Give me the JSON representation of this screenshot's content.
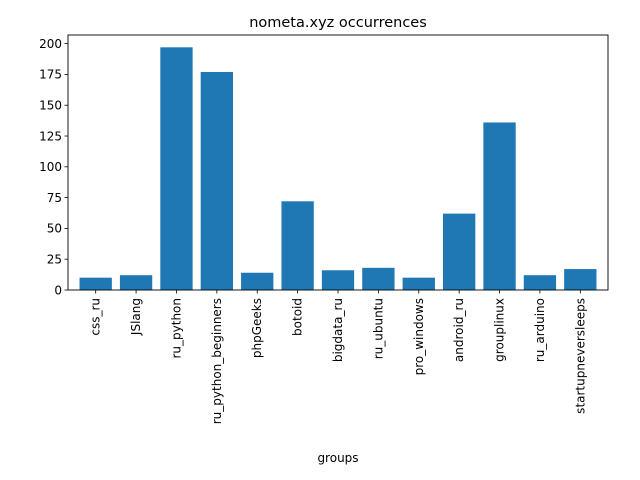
{
  "chart_data": {
    "type": "bar",
    "title": "nometa.xyz occurrences",
    "xlabel": "groups",
    "ylabel": "",
    "categories": [
      "css_ru",
      "JSlang",
      "ru_python",
      "ru_python_beginners",
      "phpGeeks",
      "botoid",
      "bigdata_ru",
      "ru_ubuntu",
      "pro_windows",
      "android_ru",
      "grouplinux",
      "ru_arduino",
      "startupneversleeps"
    ],
    "values": [
      10,
      12,
      197,
      177,
      14,
      72,
      16,
      18,
      10,
      62,
      136,
      12,
      17
    ],
    "ylim": [
      0,
      207
    ],
    "yticks": [
      0,
      25,
      50,
      75,
      100,
      125,
      150,
      175,
      200
    ],
    "bar_color": "#1f77b4",
    "grid": false,
    "legend": false
  }
}
